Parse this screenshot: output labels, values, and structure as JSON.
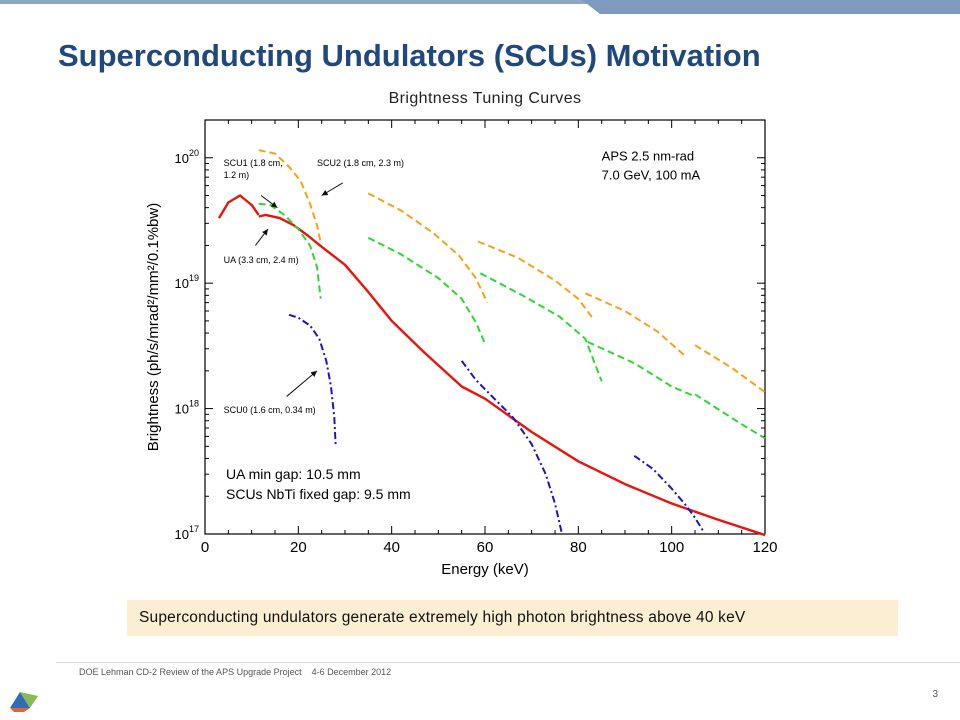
{
  "slide": {
    "title": "Superconducting Undulators (SCUs) Motivation",
    "footer_text": "DOE Lehman CD-2 Review of the APS Upgrade Project",
    "footer_date": "4-6 December 2012",
    "page_number": "3",
    "callout": "Superconducting undulators generate extremely high photon brightness above 40 keV"
  },
  "chart_data": {
    "type": "line",
    "title": "Brightness Tuning Curves",
    "xlabel": "Energy (keV)",
    "ylabel": "Brightness (ph/s/mrad²/mm²/0.1%bw)",
    "xlim": [
      0,
      120
    ],
    "ylim": [
      1e+17,
      2e+20
    ],
    "yscale": "log",
    "xticks": [
      0,
      20,
      40,
      60,
      80,
      100,
      120
    ],
    "yticks": [
      {
        "value": 1e+17,
        "base": "10",
        "exp": "17"
      },
      {
        "value": 1e+18,
        "base": "10",
        "exp": "18"
      },
      {
        "value": 1e+19,
        "base": "10",
        "exp": "19"
      },
      {
        "value": 1e+20,
        "base": "10",
        "exp": "20"
      }
    ],
    "grid": false,
    "text_box": [
      "APS 2.5 nm-rad",
      "7.0 GeV, 100 mA"
    ],
    "notes": [
      "UA min gap: 10.5 mm",
      "SCUs NbTi fixed gap: 9.5 mm"
    ],
    "series": [
      {
        "name": "UA (3.3 cm, 2.4 m)",
        "color": "#e8150c",
        "style": "solid",
        "segments": [
          [
            [
              3.0,
              3.3e+19
            ],
            [
              5.0,
              4.4e+19
            ],
            [
              7.5,
              5e+19
            ],
            [
              10.0,
              4.2e+19
            ],
            [
              11.5,
              3.5e+19
            ]
          ],
          [
            [
              11.5,
              3.4e+19
            ],
            [
              13.0,
              3.5e+19
            ],
            [
              16.0,
              3.3e+19
            ],
            [
              19.0,
              2.9e+19
            ],
            [
              22.0,
              2.4e+19
            ],
            [
              25.0,
              1.95e+19
            ],
            [
              30.0,
              1.4e+19
            ],
            [
              35.0,
              8.5e+18
            ],
            [
              40.0,
              5e+18
            ],
            [
              47.0,
              2.8e+18
            ],
            [
              55.0,
              1.5e+18
            ],
            [
              60.0,
              1.2e+18
            ],
            [
              70.0,
              6.5e+17
            ],
            [
              80.0,
              3.8e+17
            ],
            [
              90.0,
              2.5e+17
            ],
            [
              100.0,
              1.75e+17
            ],
            [
              110.0,
              1.3e+17
            ],
            [
              120.0,
              9.8e+16
            ]
          ]
        ]
      },
      {
        "name": "SCU1 (1.8 cm, 1.2 m)",
        "color": "#2ed82e",
        "style": "dashed",
        "segments": [
          [
            [
              11.5,
              4.3e+19
            ],
            [
              14.0,
              4.2e+19
            ],
            [
              17.0,
              3.5e+19
            ],
            [
              20.0,
              2.7e+19
            ],
            [
              22.5,
              2e+19
            ],
            [
              24.0,
              1.35e+19
            ],
            [
              24.8,
              7.5e+18
            ]
          ],
          [
            [
              35.0,
              2.3e+19
            ],
            [
              42.0,
              1.7e+19
            ],
            [
              50.0,
              1.1e+19
            ],
            [
              55.0,
              7.5e+18
            ],
            [
              58.0,
              4.9e+18
            ],
            [
              60.0,
              3.3e+18
            ]
          ],
          [
            [
              59.0,
              1.2e+19
            ],
            [
              68.0,
              8e+18
            ],
            [
              76.0,
              5.4e+18
            ],
            [
              81.5,
              3.6e+18
            ],
            [
              85.0,
              1.65e+18
            ]
          ],
          [
            [
              82.0,
              3.4e+18
            ],
            [
              92.0,
              2.3e+18
            ],
            [
              100.0,
              1.5e+18
            ],
            [
              105.0,
              1.25e+18
            ]
          ],
          [
            [
              105.0,
              1.3e+18
            ],
            [
              115.0,
              7.5e+17
            ],
            [
              120.0,
              5.8e+17
            ]
          ]
        ]
      },
      {
        "name": "SCU2 (1.8 cm, 2.3 m)",
        "color": "#f5a217",
        "style": "dashed",
        "segments": [
          [
            [
              11.5,
              1.15e+20
            ],
            [
              15.0,
              1.08e+20
            ],
            [
              18.0,
              8.5e+19
            ],
            [
              20.5,
              6.5e+19
            ],
            [
              22.5,
              4.3e+19
            ],
            [
              24.0,
              2.9e+19
            ],
            [
              24.8,
              2.1e+19
            ]
          ],
          [
            [
              35.0,
              5.2e+19
            ],
            [
              42.0,
              3.8e+19
            ],
            [
              49.0,
              2.5e+19
            ],
            [
              54.5,
              1.65e+19
            ],
            [
              58.0,
              1.1e+19
            ],
            [
              60.5,
              7e+18
            ]
          ],
          [
            [
              58.5,
              2.15e+19
            ],
            [
              67.0,
              1.6e+19
            ],
            [
              75.0,
              1.05e+19
            ],
            [
              80.0,
              7.5e+18
            ],
            [
              83.0,
              5.3e+18
            ]
          ],
          [
            [
              81.5,
              8.3e+18
            ],
            [
              90.0,
              6e+18
            ],
            [
              97.0,
              4.1e+18
            ],
            [
              103.0,
              2.6e+18
            ]
          ],
          [
            [
              105.0,
              3.2e+18
            ],
            [
              113.0,
              2.1e+18
            ],
            [
              120.0,
              1.35e+18
            ]
          ]
        ]
      },
      {
        "name": "SCU0 (1.6 cm, 0.34 m)",
        "color": "#1c14c8",
        "style": "dashdot",
        "segments": [
          [
            [
              18.0,
              5.6e+18
            ],
            [
              20.0,
              5.3e+18
            ],
            [
              22.5,
              4.6e+18
            ],
            [
              24.5,
              3.6e+18
            ],
            [
              26.0,
              2.4e+18
            ],
            [
              27.0,
              1.5e+18
            ],
            [
              27.7,
              8.5e+17
            ],
            [
              28.0,
              5e+17
            ]
          ],
          [
            [
              55.0,
              2.4e+18
            ],
            [
              58.0,
              1.7e+18
            ],
            [
              62.0,
              1.2e+18
            ],
            [
              66.0,
              8.5e+17
            ],
            [
              70.0,
              5.2e+17
            ],
            [
              73.0,
              3e+17
            ],
            [
              75.0,
              1.75e+17
            ],
            [
              76.5,
              1e+17
            ]
          ],
          [
            [
              92.0,
              4.2e+17
            ],
            [
              96.0,
              3.3e+17
            ],
            [
              100.0,
              2.3e+17
            ],
            [
              103.0,
              1.7e+17
            ],
            [
              105.0,
              1.35e+17
            ],
            [
              107.0,
              1.02e+17
            ]
          ]
        ]
      }
    ],
    "annotations": [
      {
        "label": "SCU1 (1.8 cm,",
        "label2": "1.2 m)",
        "at": [
          4.0,
          8.6e+19
        ],
        "arrow_from": [
          12.0,
          5e+19
        ],
        "arrow_to": [
          15.5,
          4e+19
        ]
      },
      {
        "label": "SCU2 (1.8 cm, 2.3 m)",
        "at": [
          24.0,
          8.6e+19
        ],
        "arrow_from": [
          29.5,
          6.3e+19
        ],
        "arrow_to": [
          25.0,
          5e+19
        ]
      },
      {
        "label": "UA (3.3 cm, 2.4 m)",
        "at": [
          4.0,
          1.45e+19
        ],
        "arrow_from": [
          10.8,
          2e+19
        ],
        "arrow_to": [
          13.5,
          2.7e+19
        ]
      },
      {
        "label": "SCU0 (1.6 cm, 0.34 m)",
        "at": [
          4.0,
          9.2e+17
        ],
        "arrow_from": [
          17.5,
          1.25e+18
        ],
        "arrow_to": [
          24.0,
          2e+18
        ]
      }
    ]
  }
}
